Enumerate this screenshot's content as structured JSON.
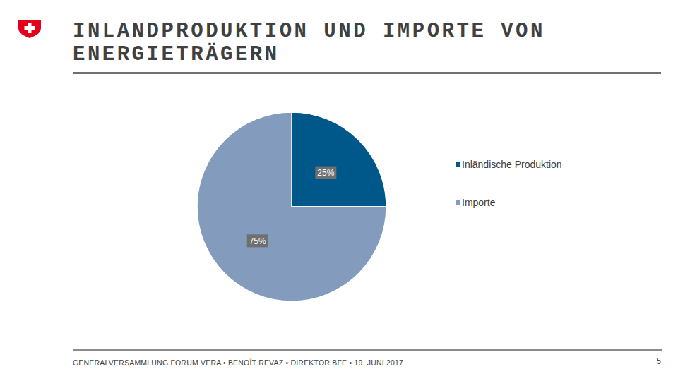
{
  "chart_data": {
    "type": "pie",
    "title": "INLANDPRODUKTION UND IMPORTE VON ENERGIETRÄGERN",
    "categories": [
      "Inländische Produktion",
      "Importe"
    ],
    "values": [
      25,
      75
    ],
    "value_labels": [
      "25%",
      "75%"
    ],
    "colors": [
      "#00578a",
      "#839cbd"
    ],
    "data_labels": true,
    "legend": "right"
  },
  "footer": "GENERALVERSAMMLUNG FORUM VERA • BENOÎT REVAZ • DIREKTOR BFE • 19. JUNI 2017",
  "page_number": "5"
}
